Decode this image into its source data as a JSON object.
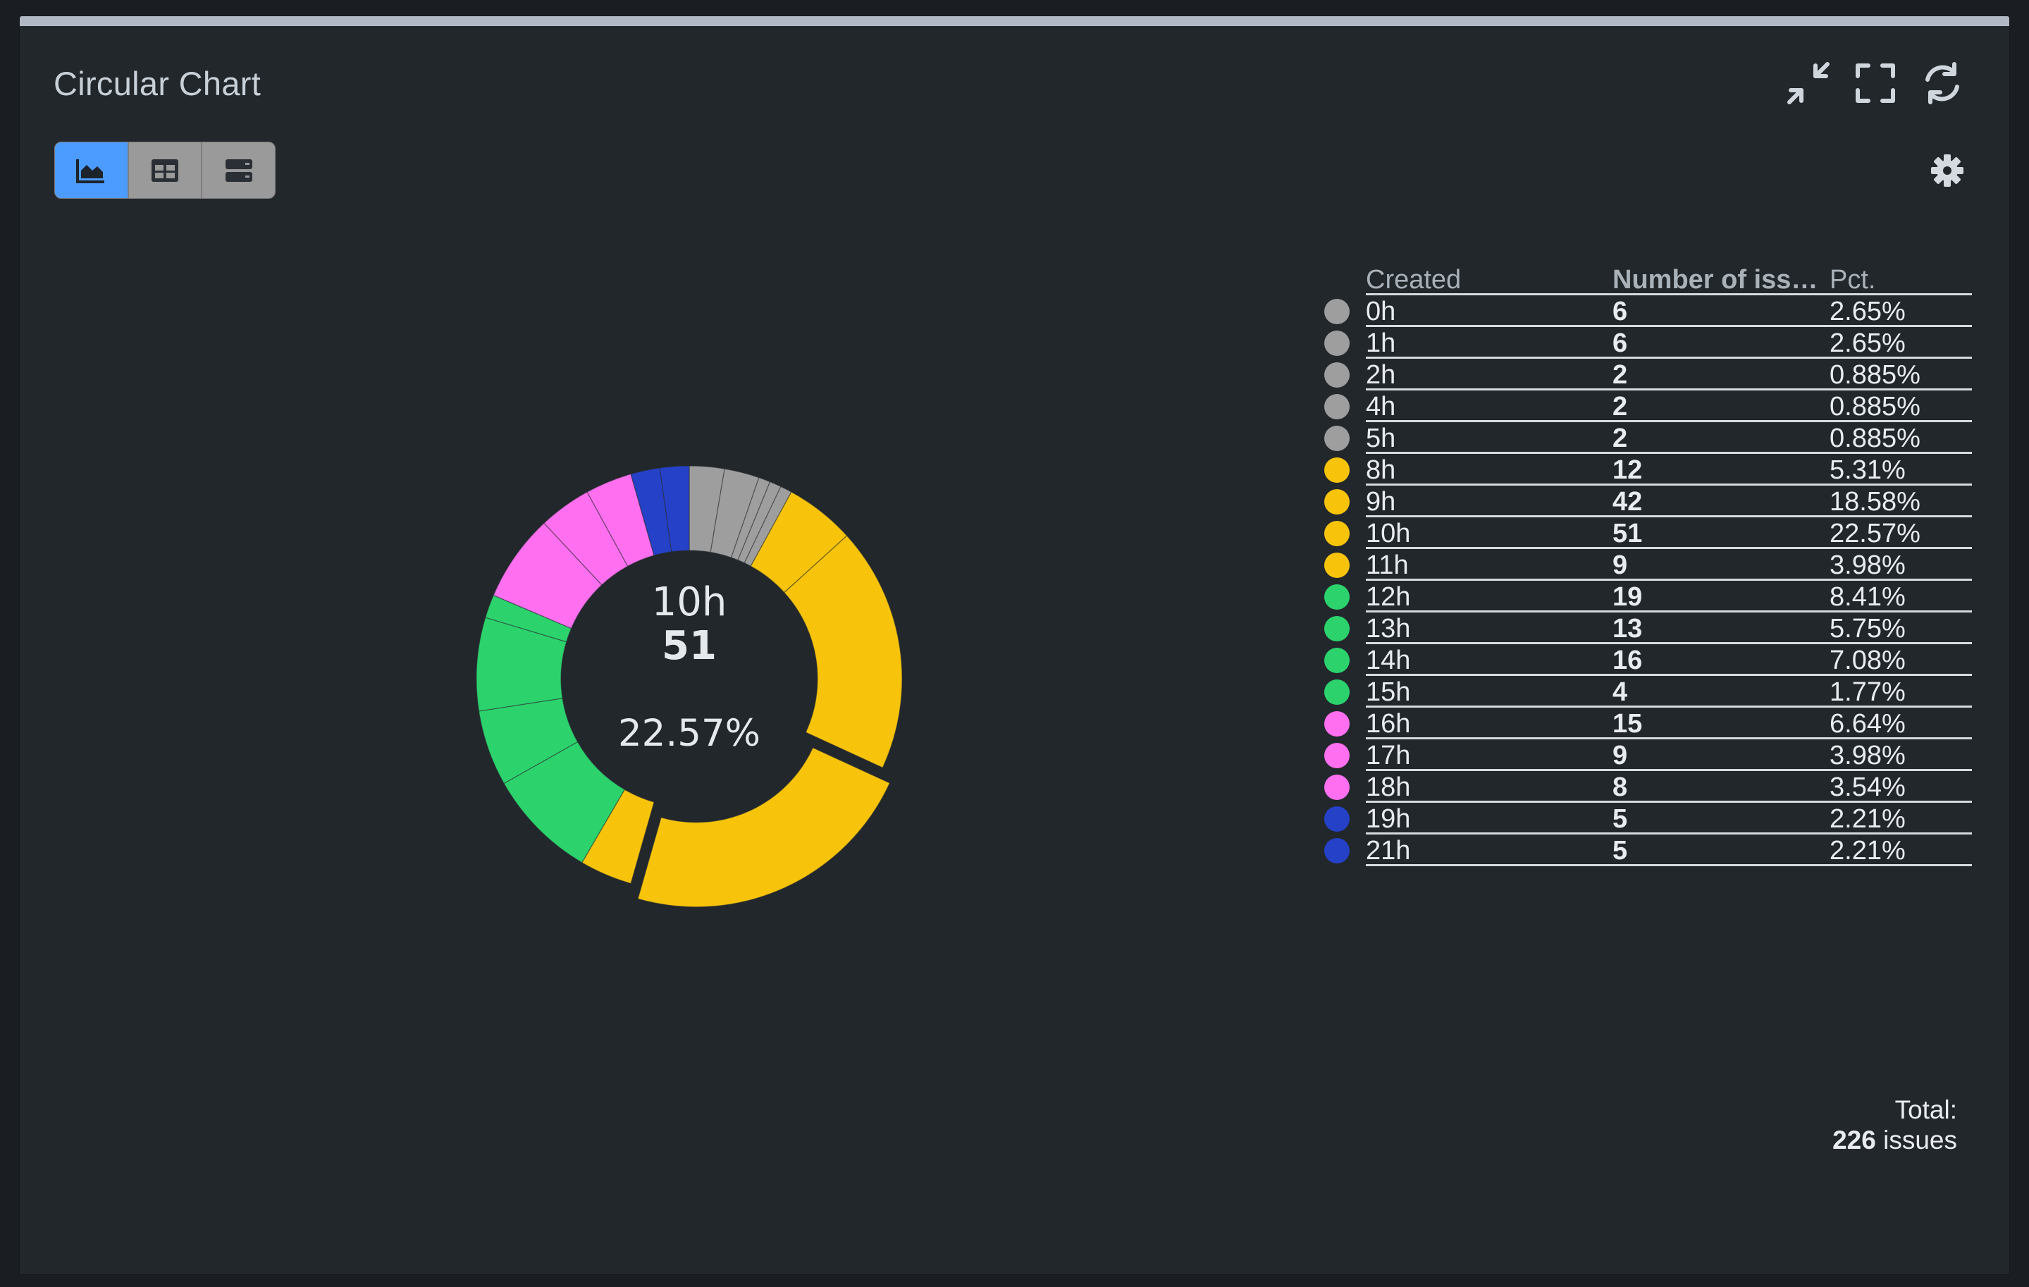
{
  "panel": {
    "title": "Circular Chart"
  },
  "header_icons": [
    "collapse-icon",
    "fullscreen-icon",
    "refresh-icon"
  ],
  "view_switch": {
    "items": [
      {
        "icon": "area-chart-icon",
        "active": true
      },
      {
        "icon": "table-grid-icon",
        "active": false
      },
      {
        "icon": "list-rows-icon",
        "active": false
      }
    ]
  },
  "settings_icon": "gear-icon",
  "center": {
    "label": "10h",
    "value": "51",
    "pct": "22.57%"
  },
  "legend": {
    "headers": {
      "name": "Created",
      "count": "Number of iss…",
      "pct": "Pct."
    }
  },
  "total": {
    "label": "Total:",
    "value": "226",
    "unit": "issues"
  },
  "colors": {
    "gray": "#9e9e9e",
    "yellow": "#f7c40b",
    "green": "#2cd36d",
    "pink": "#ff6ff0",
    "blue": "#2541c8",
    "panel_bg": "#22272c",
    "accent": "#4c9cff"
  },
  "chart_data": {
    "type": "pie",
    "variant": "donut",
    "highlighted": "10h",
    "categories": [
      "0h",
      "1h",
      "2h",
      "4h",
      "5h",
      "8h",
      "9h",
      "10h",
      "11h",
      "12h",
      "13h",
      "14h",
      "15h",
      "16h",
      "17h",
      "18h",
      "19h",
      "21h"
    ],
    "values": [
      6,
      6,
      2,
      2,
      2,
      12,
      42,
      51,
      9,
      19,
      13,
      16,
      4,
      15,
      9,
      8,
      5,
      5
    ],
    "percentages": [
      "2.65%",
      "2.65%",
      "0.885%",
      "0.885%",
      "0.885%",
      "5.31%",
      "18.58%",
      "22.57%",
      "3.98%",
      "8.41%",
      "5.75%",
      "7.08%",
      "1.77%",
      "6.64%",
      "3.98%",
      "3.54%",
      "2.21%",
      "2.21%"
    ],
    "colors": [
      "#9e9e9e",
      "#9e9e9e",
      "#9e9e9e",
      "#9e9e9e",
      "#9e9e9e",
      "#f7c40b",
      "#f7c40b",
      "#f7c40b",
      "#f7c40b",
      "#2cd36d",
      "#2cd36d",
      "#2cd36d",
      "#2cd36d",
      "#ff6ff0",
      "#ff6ff0",
      "#ff6ff0",
      "#2541c8",
      "#2541c8"
    ],
    "total": 226
  }
}
